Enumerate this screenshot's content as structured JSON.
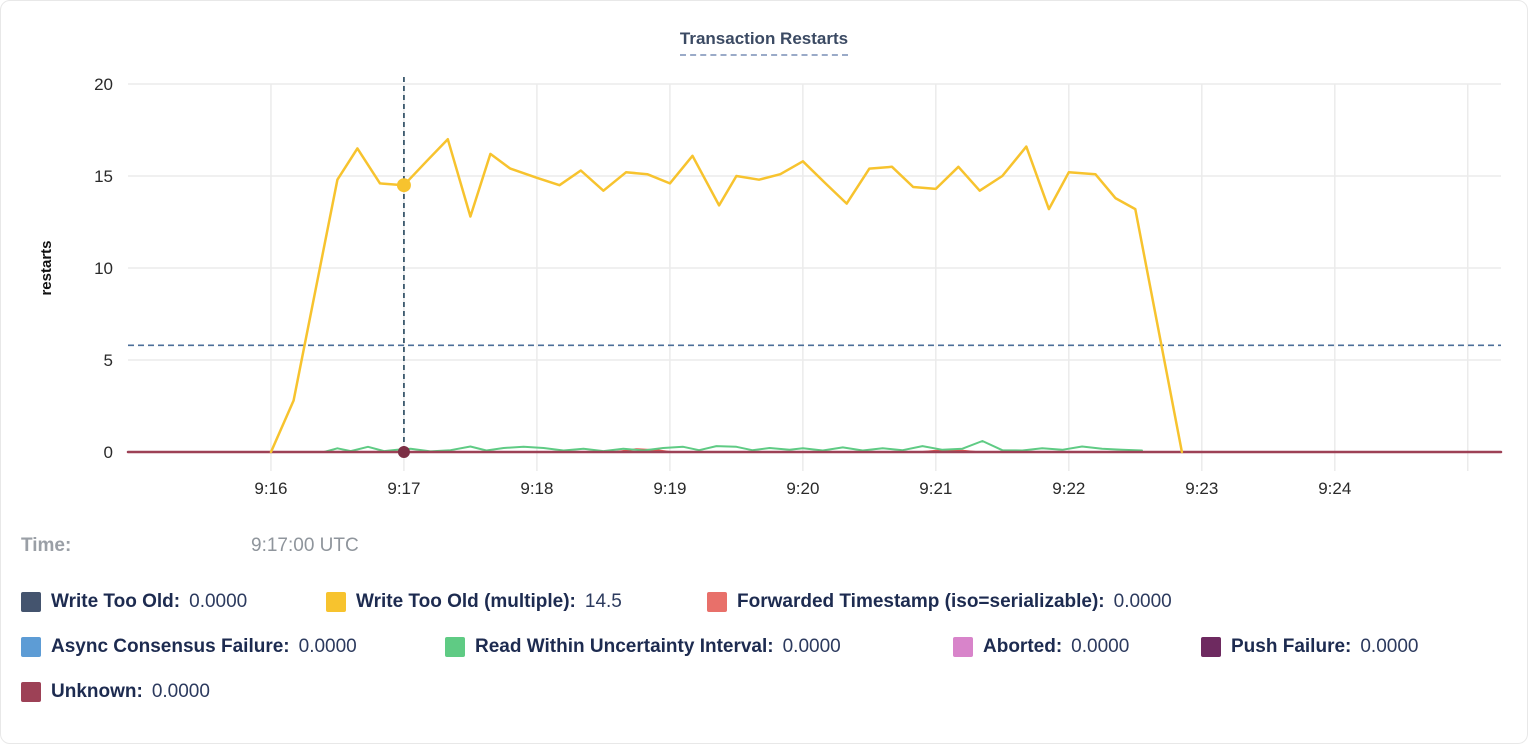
{
  "title": "Transaction Restarts",
  "axes": {
    "ylabel": "restarts",
    "yticks": [
      "0",
      "5",
      "10",
      "15",
      "20"
    ],
    "xtick_labels": [
      "9:16",
      "9:17",
      "9:18",
      "9:19",
      "9:20",
      "9:21",
      "9:22",
      "9:23",
      "9:24"
    ]
  },
  "tooltip": {
    "time_label": "Time:",
    "time_value": "9:17:00 UTC"
  },
  "legend": {
    "rows": [
      [
        {
          "label": "Write Too Old:",
          "value": "0.0000",
          "color": "#44546e",
          "slug": "write-too-old"
        },
        {
          "label": "Write Too Old (multiple):",
          "value": "14.5",
          "color": "#f7c32e",
          "slug": "write-too-old-multiple"
        },
        {
          "label": "Forwarded Timestamp (iso=serializable):",
          "value": "0.0000",
          "color": "#e8706a",
          "slug": "forwarded-timestamp"
        }
      ],
      [
        {
          "label": "Async Consensus Failure:",
          "value": "0.0000",
          "color": "#5d9cd5",
          "slug": "async-consensus-failure"
        },
        {
          "label": "Read Within Uncertainty Interval:",
          "value": "0.0000",
          "color": "#5fcb84",
          "slug": "read-within-uncertainty-interval"
        },
        {
          "label": "Aborted:",
          "value": "0.0000",
          "color": "#d884ca",
          "slug": "aborted"
        },
        {
          "label": "Push Failure:",
          "value": "0.0000",
          "color": "#6e2a60",
          "slug": "push-failure"
        }
      ],
      [
        {
          "label": "Unknown:",
          "value": "0.0000",
          "color": "#9d4156",
          "slug": "unknown"
        }
      ]
    ]
  },
  "chart_data": {
    "type": "line",
    "title": "Transaction Restarts",
    "xlabel": "",
    "ylabel": "restarts",
    "ylim": [
      0,
      20
    ],
    "yticks": [
      0,
      5,
      10,
      15,
      20
    ],
    "grid": true,
    "x_unit": "minutes after 9:00 UTC",
    "xticks": [
      {
        "t": 16,
        "label": "9:16"
      },
      {
        "t": 17,
        "label": "9:17"
      },
      {
        "t": 18,
        "label": "9:18"
      },
      {
        "t": 19,
        "label": "9:19"
      },
      {
        "t": 20,
        "label": "9:20"
      },
      {
        "t": 21,
        "label": "9:21"
      },
      {
        "t": 22,
        "label": "9:22"
      },
      {
        "t": 23,
        "label": "9:23"
      },
      {
        "t": 24,
        "label": "9:24"
      },
      {
        "t": 25,
        "label": ""
      }
    ],
    "x_domain": [
      14.925,
      25.25
    ],
    "dashed_hline": {
      "value": 5.8,
      "color": "#4c6f99"
    },
    "crosshair": {
      "t": 17,
      "time_label": "9:17:00 UTC",
      "color": "#24455c",
      "dots": [
        {
          "series": "Write Too Old (multiple)",
          "value": 14.5,
          "color": "#f7c32e",
          "r": 7
        },
        {
          "series": "Unknown",
          "value": 0,
          "color": "#7c2f45",
          "r": 6
        }
      ]
    },
    "series": [
      {
        "name": "Write Too Old",
        "color": "#44546e",
        "width": 1.5,
        "points": [
          [
            14.925,
            0
          ],
          [
            25.25,
            0
          ]
        ]
      },
      {
        "name": "Write Too Old (multiple)",
        "color": "#f7c32e",
        "width": 2.5,
        "points": [
          [
            16.0,
            0
          ],
          [
            16.17,
            2.8
          ],
          [
            16.5,
            14.8
          ],
          [
            16.65,
            16.5
          ],
          [
            16.82,
            14.6
          ],
          [
            17.0,
            14.5
          ],
          [
            17.17,
            15.8
          ],
          [
            17.33,
            17.0
          ],
          [
            17.5,
            12.8
          ],
          [
            17.65,
            16.2
          ],
          [
            17.8,
            15.4
          ],
          [
            18.0,
            14.9
          ],
          [
            18.17,
            14.5
          ],
          [
            18.33,
            15.3
          ],
          [
            18.5,
            14.2
          ],
          [
            18.67,
            15.2
          ],
          [
            18.83,
            15.1
          ],
          [
            19.0,
            14.6
          ],
          [
            19.17,
            16.1
          ],
          [
            19.37,
            13.4
          ],
          [
            19.5,
            15.0
          ],
          [
            19.67,
            14.8
          ],
          [
            19.83,
            15.1
          ],
          [
            20.0,
            15.8
          ],
          [
            20.17,
            14.6
          ],
          [
            20.33,
            13.5
          ],
          [
            20.5,
            15.4
          ],
          [
            20.67,
            15.5
          ],
          [
            20.83,
            14.4
          ],
          [
            21.0,
            14.3
          ],
          [
            21.17,
            15.5
          ],
          [
            21.33,
            14.2
          ],
          [
            21.5,
            15.0
          ],
          [
            21.68,
            16.6
          ],
          [
            21.85,
            13.2
          ],
          [
            22.0,
            15.2
          ],
          [
            22.2,
            15.1
          ],
          [
            22.35,
            13.8
          ],
          [
            22.5,
            13.2
          ],
          [
            22.85,
            0
          ]
        ]
      },
      {
        "name": "Forwarded Timestamp (iso=serializable)",
        "color": "#e0564f",
        "width": 2,
        "points": [
          [
            14.925,
            0
          ],
          [
            18.6,
            0
          ],
          [
            18.75,
            0.15
          ],
          [
            18.9,
            0.1
          ],
          [
            19.0,
            0
          ],
          [
            20.9,
            0
          ],
          [
            21.05,
            0.1
          ],
          [
            21.2,
            0.07
          ],
          [
            21.3,
            0
          ],
          [
            25.25,
            0
          ]
        ]
      },
      {
        "name": "Async Consensus Failure",
        "color": "#5d9cd5",
        "width": 1.5,
        "points": [
          [
            14.925,
            0
          ],
          [
            25.25,
            0
          ]
        ]
      },
      {
        "name": "Read Within Uncertainty Interval",
        "color": "#5fcb84",
        "width": 2,
        "points": [
          [
            16.4,
            0
          ],
          [
            16.5,
            0.2
          ],
          [
            16.6,
            0.05
          ],
          [
            16.73,
            0.28
          ],
          [
            16.85,
            0.05
          ],
          [
            16.95,
            0.12
          ],
          [
            17.05,
            0.18
          ],
          [
            17.2,
            0.03
          ],
          [
            17.35,
            0.1
          ],
          [
            17.5,
            0.3
          ],
          [
            17.62,
            0.08
          ],
          [
            17.75,
            0.22
          ],
          [
            17.9,
            0.28
          ],
          [
            18.05,
            0.22
          ],
          [
            18.2,
            0.08
          ],
          [
            18.35,
            0.18
          ],
          [
            18.5,
            0.05
          ],
          [
            18.65,
            0.18
          ],
          [
            18.8,
            0.08
          ],
          [
            18.95,
            0.22
          ],
          [
            19.1,
            0.28
          ],
          [
            19.22,
            0.1
          ],
          [
            19.35,
            0.32
          ],
          [
            19.5,
            0.28
          ],
          [
            19.62,
            0.1
          ],
          [
            19.75,
            0.22
          ],
          [
            19.9,
            0.12
          ],
          [
            20.0,
            0.2
          ],
          [
            20.15,
            0.08
          ],
          [
            20.3,
            0.25
          ],
          [
            20.45,
            0.08
          ],
          [
            20.6,
            0.2
          ],
          [
            20.75,
            0.1
          ],
          [
            20.9,
            0.32
          ],
          [
            21.05,
            0.12
          ],
          [
            21.2,
            0.18
          ],
          [
            21.35,
            0.6
          ],
          [
            21.5,
            0.1
          ],
          [
            21.65,
            0.08
          ],
          [
            21.8,
            0.2
          ],
          [
            21.95,
            0.12
          ],
          [
            22.1,
            0.3
          ],
          [
            22.25,
            0.18
          ],
          [
            22.4,
            0.12
          ],
          [
            22.55,
            0.08
          ]
        ]
      },
      {
        "name": "Aborted",
        "color": "#d884ca",
        "width": 1.5,
        "points": [
          [
            14.925,
            0
          ],
          [
            25.25,
            0
          ]
        ]
      },
      {
        "name": "Push Failure",
        "color": "#6e2a60",
        "width": 1.5,
        "points": [
          [
            14.925,
            0
          ],
          [
            25.25,
            0
          ]
        ]
      },
      {
        "name": "Unknown",
        "color": "#9d4156",
        "width": 2.5,
        "points": [
          [
            14.925,
            0
          ],
          [
            25.25,
            0
          ]
        ]
      }
    ],
    "legend_position": "bottom"
  }
}
